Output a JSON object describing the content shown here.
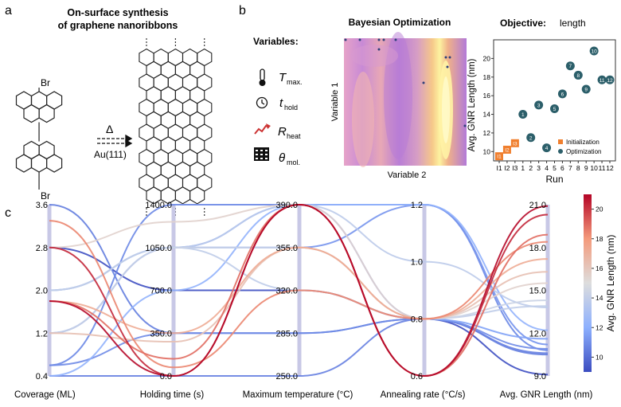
{
  "panel_labels": {
    "a": "a",
    "b": "b",
    "c": "c"
  },
  "panel_a": {
    "title_line1": "On-surface synthesis",
    "title_line2": "of graphene nanoribbons",
    "br_top": "Br",
    "br_bottom": "Br",
    "heat_symbol": "Δ",
    "substrate": "Au(111)"
  },
  "panel_b": {
    "variables_title": "Variables:",
    "variables": [
      {
        "icon": "thermometer-icon",
        "symbol": "T",
        "sub": "max."
      },
      {
        "icon": "clock-icon",
        "symbol": "t",
        "sub": "hold"
      },
      {
        "icon": "heating-rate-icon",
        "symbol": "R",
        "sub": "heat"
      },
      {
        "icon": "molecule-grid-icon",
        "symbol": "θ",
        "sub": "mol."
      }
    ],
    "bo_title": "Bayesian Optimization",
    "bo_xlabel": "Variable 2",
    "bo_ylabel": "Variable 1",
    "objective_title": "Objective:",
    "objective_value": "length",
    "colors": {
      "init": "#f07f2e",
      "opt": "#2c5f6a"
    }
  },
  "chart_data": [
    {
      "type": "scatter",
      "title": "Objective: length",
      "xlabel": "Run",
      "ylabel": "Avg. GNR Length (nm)",
      "categories": [
        "I1",
        "I2",
        "I3",
        "1",
        "2",
        "3",
        "4",
        "5",
        "6",
        "7",
        "8",
        "9",
        "10",
        "11",
        "12"
      ],
      "ylim": [
        9,
        22
      ],
      "yticks": [
        10,
        12,
        14,
        16,
        18,
        20
      ],
      "series": [
        {
          "name": "Initialization",
          "color": "#f07f2e",
          "marker": "square",
          "points": [
            {
              "x": "I1",
              "y": 9.5,
              "label": "I1"
            },
            {
              "x": "I2",
              "y": 10.2,
              "label": "I2"
            },
            {
              "x": "I3",
              "y": 10.9,
              "label": "I3"
            }
          ]
        },
        {
          "name": "Optimization",
          "color": "#2c5f6a",
          "marker": "circle",
          "points": [
            {
              "x": "1",
              "y": 14.0,
              "label": "1"
            },
            {
              "x": "2",
              "y": 11.5,
              "label": "2"
            },
            {
              "x": "3",
              "y": 15.0,
              "label": "3"
            },
            {
              "x": "4",
              "y": 10.4,
              "label": "4"
            },
            {
              "x": "5",
              "y": 14.6,
              "label": "5"
            },
            {
              "x": "6",
              "y": 16.2,
              "label": "6"
            },
            {
              "x": "7",
              "y": 19.2,
              "label": "7"
            },
            {
              "x": "8",
              "y": 18.2,
              "label": "8"
            },
            {
              "x": "9",
              "y": 16.7,
              "label": "9"
            },
            {
              "x": "10",
              "y": 20.8,
              "label": "10"
            },
            {
              "x": "11",
              "y": 17.7,
              "label": "11"
            },
            {
              "x": "12",
              "y": 17.7,
              "label": "12"
            }
          ]
        }
      ]
    },
    {
      "type": "parallel-coordinates",
      "axes": [
        {
          "label": "Coverage (ML)",
          "range": [
            0.4,
            3.6
          ],
          "ticks": [
            "0.4",
            "1.2",
            "2.0",
            "2.8",
            "3.6"
          ]
        },
        {
          "label": "Holding time (s)",
          "range": [
            0,
            1400
          ],
          "ticks": [
            "0.0",
            "350.0",
            "700.0",
            "1050.0",
            "1400.0"
          ]
        },
        {
          "label": "Maximum temperature (°C)",
          "range": [
            250,
            390
          ],
          "ticks": [
            "250.0",
            "285.0",
            "320.0",
            "355.0",
            "390.0"
          ]
        },
        {
          "label": "Annealing rate (°C/s)",
          "range": [
            0.6,
            1.2
          ],
          "ticks": [
            "0.6",
            "0.8",
            "1.0",
            "1.2"
          ]
        },
        {
          "label": "Avg. GNR Length (nm)",
          "range": [
            9,
            21
          ],
          "ticks": [
            "9.0",
            "12.0",
            "15.0",
            "18.0",
            "21.0"
          ]
        }
      ],
      "colorbar": {
        "label": "Avg. GNR Length (nm)",
        "range": [
          9,
          21
        ],
        "ticks": [
          "10",
          "12",
          "14",
          "16",
          "18",
          "20"
        ]
      },
      "lines": [
        [
          0.4,
          0.0,
          250,
          0.8,
          10.6
        ],
        [
          0.6,
          1400,
          390,
          1.2,
          10.8
        ],
        [
          2.8,
          700,
          320,
          0.8,
          9.1
        ],
        [
          1.2,
          1050,
          355,
          1.2,
          11.2
        ],
        [
          3.6,
          350,
          285,
          0.8,
          10.5
        ],
        [
          0.6,
          350,
          285,
          0.8,
          10.9
        ],
        [
          2.0,
          1050,
          390,
          0.8,
          11.6
        ],
        [
          0.4,
          700,
          390,
          1.2,
          12.2
        ],
        [
          2.0,
          1050,
          390,
          1.0,
          13.8
        ],
        [
          1.2,
          1050,
          355,
          0.8,
          14.3
        ],
        [
          2.0,
          1050,
          320,
          0.8,
          13.9
        ],
        [
          2.8,
          1260,
          390,
          0.8,
          15.5
        ],
        [
          1.2,
          280,
          355,
          0.8,
          16.3
        ],
        [
          1.8,
          350,
          355,
          0.8,
          17.2
        ],
        [
          3.3,
          70,
          320,
          0.8,
          18.4
        ],
        [
          1.8,
          140,
          390,
          0.6,
          18.9
        ],
        [
          2.8,
          0.0,
          390,
          0.6,
          20.3
        ],
        [
          1.8,
          0.0,
          390,
          0.6,
          20.9
        ]
      ]
    }
  ]
}
